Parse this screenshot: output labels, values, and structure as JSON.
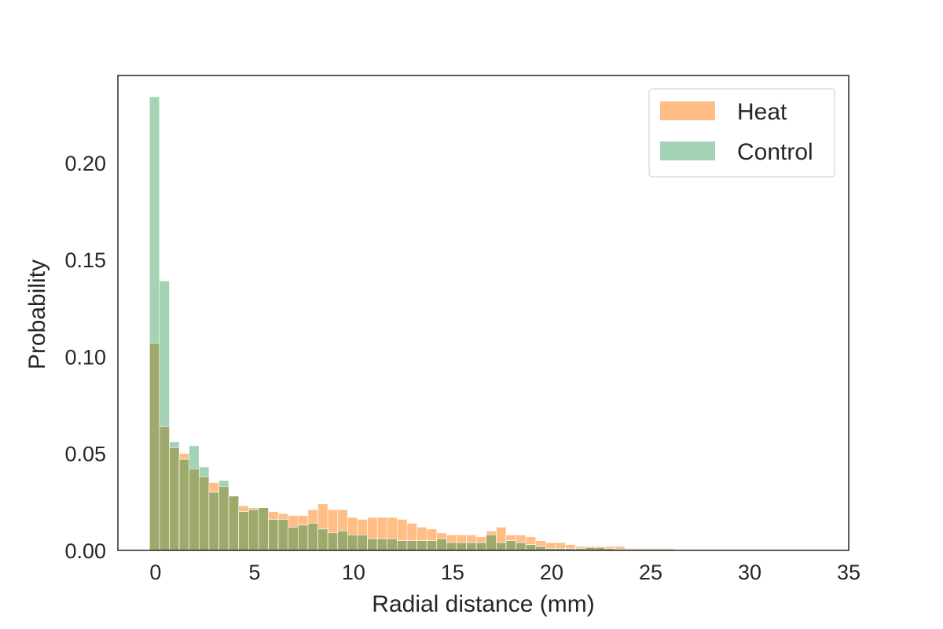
{
  "chart_data": {
    "type": "bar",
    "xlabel": "Radial distance (mm)",
    "ylabel": "Probability",
    "xlim": [
      -1.9,
      35.0
    ],
    "ylim": [
      0,
      0.245
    ],
    "xticks": [
      0,
      5,
      10,
      15,
      20,
      25,
      30,
      35
    ],
    "yticks": [
      0.0,
      0.05,
      0.1,
      0.15,
      0.2
    ],
    "ytick_labels": [
      "0.00",
      "0.05",
      "0.10",
      "0.15",
      "0.20"
    ],
    "bin_start": -0.3,
    "bin_width": 0.5,
    "grid": false,
    "legend": "top-right",
    "colors": {
      "Heat": "#ffbe86",
      "Control": "#a4d2b4",
      "Overlap": "#9ea96c"
    },
    "series": [
      {
        "name": "Heat",
        "values": [
          0.107,
          0.064,
          0.053,
          0.05,
          0.042,
          0.038,
          0.035,
          0.033,
          0.028,
          0.023,
          0.022,
          0.022,
          0.02,
          0.019,
          0.018,
          0.018,
          0.021,
          0.024,
          0.021,
          0.021,
          0.017,
          0.016,
          0.017,
          0.017,
          0.017,
          0.016,
          0.014,
          0.012,
          0.011,
          0.009,
          0.008,
          0.008,
          0.008,
          0.007,
          0.01,
          0.012,
          0.008,
          0.008,
          0.007,
          0.005,
          0.004,
          0.004,
          0.003,
          0.002,
          0.002,
          0.002,
          0.002,
          0.002,
          0.001,
          0.001,
          0.001,
          0.001,
          0.001,
          0.0005,
          0.0005,
          0.0005,
          0.0005
        ]
      },
      {
        "name": "Control",
        "values": [
          0.234,
          0.139,
          0.056,
          0.047,
          0.054,
          0.043,
          0.03,
          0.036,
          0.028,
          0.02,
          0.021,
          0.022,
          0.016,
          0.016,
          0.012,
          0.013,
          0.014,
          0.011,
          0.009,
          0.01,
          0.008,
          0.008,
          0.006,
          0.006,
          0.006,
          0.005,
          0.005,
          0.005,
          0.005,
          0.006,
          0.004,
          0.004,
          0.004,
          0.004,
          0.008,
          0.004,
          0.005,
          0.004,
          0.003,
          0.002,
          0.001,
          0.001,
          0.001,
          0.001,
          0.0015,
          0.0015,
          0.001,
          0.0005,
          0.0005,
          0.0005,
          0.0005,
          0.0005,
          0.0005,
          0.0003,
          0.0003,
          0.0003,
          0.0003
        ]
      }
    ]
  }
}
